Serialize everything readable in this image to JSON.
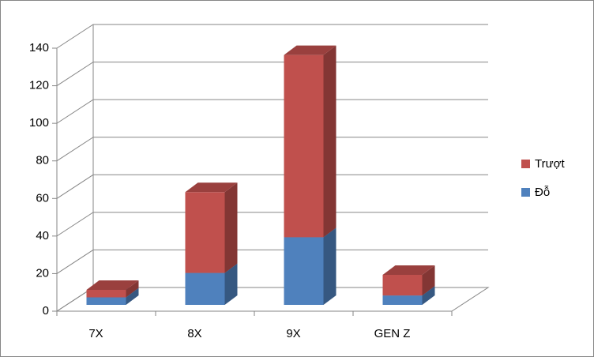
{
  "chart_data": {
    "type": "bar3d_stacked",
    "categories": [
      "7X",
      "8X",
      "9X",
      "GEN Z"
    ],
    "series": [
      {
        "name": "Đỗ",
        "color": "#4f81bd",
        "values": [
          4,
          17,
          36,
          5
        ]
      },
      {
        "name": "Trượt",
        "color": "#c0504d",
        "values": [
          4,
          43,
          97,
          11
        ]
      }
    ],
    "ylim": [
      0,
      140
    ],
    "yticks": [
      0,
      20,
      40,
      60,
      80,
      100,
      120,
      140
    ],
    "grid": true,
    "legend": "right"
  }
}
